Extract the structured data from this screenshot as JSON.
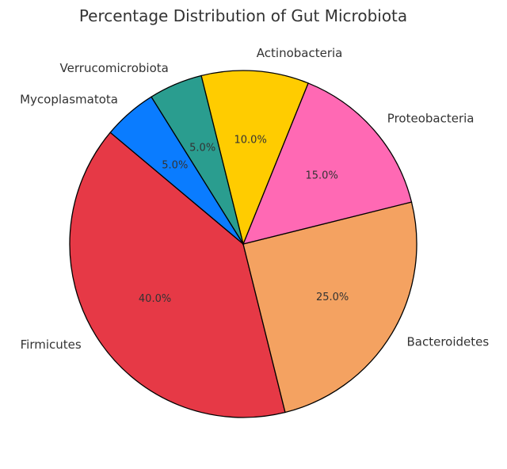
{
  "chart_data": {
    "type": "pie",
    "title": "Percentage Distribution of Gut Microbiota",
    "slices": [
      {
        "label": "Firmicutes",
        "value": 40.0,
        "pct_label": "40.0%",
        "color": "#E63946"
      },
      {
        "label": "Bacteroidetes",
        "value": 25.0,
        "pct_label": "25.0%",
        "color": "#F4A261"
      },
      {
        "label": "Proteobacteria",
        "value": 15.0,
        "pct_label": "15.0%",
        "color": "#FF69B4"
      },
      {
        "label": "Actinobacteria",
        "value": 10.0,
        "pct_label": "10.0%",
        "color": "#FFCC00"
      },
      {
        "label": "Verrucomicrobiota",
        "value": 5.0,
        "pct_label": "5.0%",
        "color": "#2A9D8F"
      },
      {
        "label": "Mycoplasmatota",
        "value": 5.0,
        "pct_label": "5.0%",
        "color": "#0A7CFF"
      }
    ],
    "start_angle_deg": 140,
    "direction": "counterclockwise"
  }
}
